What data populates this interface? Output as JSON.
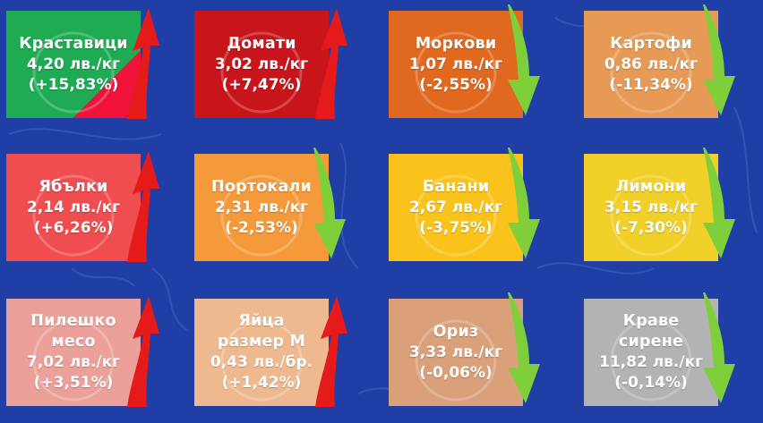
{
  "colors": {
    "background": "#1f3fa6",
    "up_arrow": "#e51b1b",
    "down_arrow": "#7fcf3a"
  },
  "items": [
    {
      "name": "Краставици",
      "price": "4,20 лв./кг",
      "change": "(+15,83%)",
      "trend": "up",
      "icon": "cucumber-icon",
      "color": "#1fab54",
      "split_color": "#f0123a"
    },
    {
      "name": "Домати",
      "price": "3,02 лв./кг",
      "change": "(+7,47%)",
      "trend": "up",
      "icon": "tomato-icon",
      "color": "#c8151c"
    },
    {
      "name": "Моркови",
      "price": "1,07 лв./кг",
      "change": "(-2,55%)",
      "trend": "down",
      "icon": "carrot-icon",
      "color": "#e0681f"
    },
    {
      "name": "Картофи",
      "price": "0,86 лв./кг",
      "change": "(-11,34%)",
      "trend": "down",
      "icon": "potato-icon",
      "color": "#e69a55"
    },
    {
      "name": "Ябълки",
      "price": "2,14 лв./кг",
      "change": "(+6,26%)",
      "trend": "up",
      "icon": "apple-icon",
      "color": "#ef4d4f"
    },
    {
      "name": "Портокали",
      "price": "2,31 лв./кг",
      "change": "(-2,53%)",
      "trend": "down",
      "icon": "orange-icon",
      "color": "#f59a3a"
    },
    {
      "name": "Банани",
      "price": "2,67 лв./кг",
      "change": "(-3,75%)",
      "trend": "down",
      "icon": "banana-icon",
      "color": "#f9c31c"
    },
    {
      "name": "Лимони",
      "price": "3,15 лв./кг",
      "change": "(-7,30%)",
      "trend": "down",
      "icon": "lemon-icon",
      "color": "#f2d02a"
    },
    {
      "name": "Пилешко\nмесо",
      "price": "7,02 лв./кг",
      "change": "(+3,51%)",
      "trend": "up",
      "icon": "chicken-icon",
      "color": "#eba09a"
    },
    {
      "name": "Яйца\nразмер М",
      "price": "0,43 лв./бр.",
      "change": "(+1,42%)",
      "trend": "up",
      "icon": "eggs-icon",
      "color": "#efb98f"
    },
    {
      "name": "Ориз",
      "price": "3,33 лв./кг",
      "change": "(-0,06%)",
      "trend": "down",
      "icon": "rice-icon",
      "color": "#d9a07a"
    },
    {
      "name": "Краве\nсирене",
      "price": "11,82 лв./кг",
      "change": "(-0,14%)",
      "trend": "down",
      "icon": "cheese-icon",
      "color": "#b3b3b3"
    }
  ]
}
